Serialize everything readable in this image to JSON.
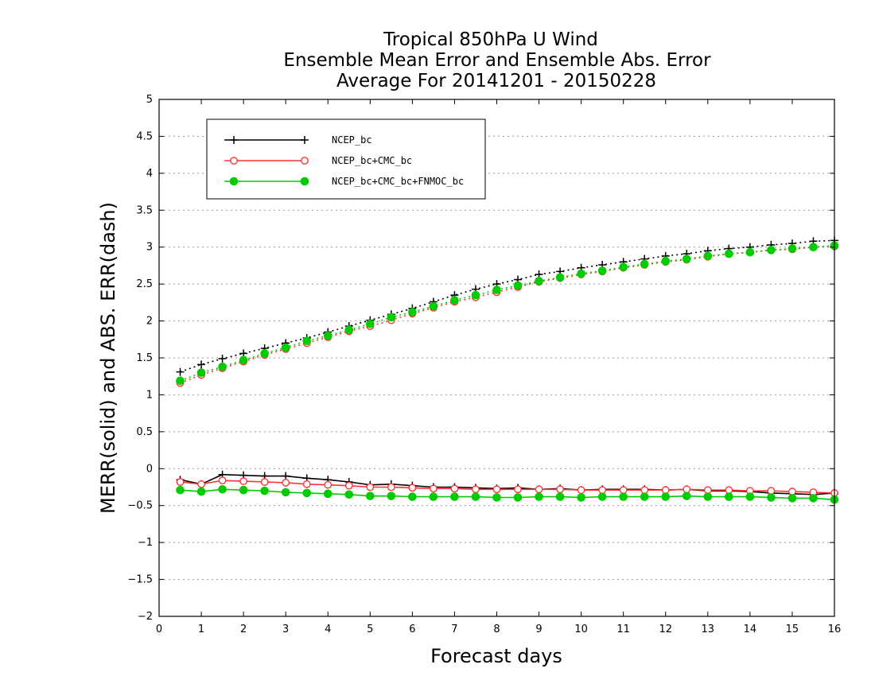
{
  "chart_data": {
    "type": "line",
    "title_lines": [
      "Tropical 850hPa U Wind",
      "Ensemble Mean Error and Ensemble Abs. Error",
      "Average For 20141201 - 20150228"
    ],
    "xlabel": "Forecast days",
    "ylabel": "MERR(solid) and ABS. ERR(dash)",
    "xlim": [
      0,
      16
    ],
    "ylim": [
      -2,
      5
    ],
    "xticks": [
      0,
      1,
      2,
      3,
      4,
      5,
      6,
      7,
      8,
      9,
      10,
      11,
      12,
      13,
      14,
      15,
      16
    ],
    "yticks": [
      -2,
      -1.5,
      -1,
      -0.5,
      0,
      0.5,
      1,
      1.5,
      2,
      2.5,
      3,
      3.5,
      4,
      4.5,
      5
    ],
    "ytick_labels": [
      "−2",
      "−1.5",
      "−1",
      "−0.5",
      "0",
      "0.5",
      "1",
      "1.5",
      "2",
      "2.5",
      "3",
      "3.5",
      "4",
      "4.5",
      "5"
    ],
    "grid": "horizontal dotted",
    "legend_position": "top-left",
    "x": [
      0.5,
      1,
      1.5,
      2,
      2.5,
      3,
      3.5,
      4,
      4.5,
      5,
      5.5,
      6,
      6.5,
      7,
      7.5,
      8,
      8.5,
      9,
      9.5,
      10,
      10.5,
      11,
      11.5,
      12,
      12.5,
      13,
      13.5,
      14,
      14.5,
      15,
      15.5,
      16
    ],
    "series": [
      {
        "name": "NCEP_bc",
        "color": "#000000",
        "marker": "plus",
        "merr": [
          -0.15,
          -0.21,
          -0.08,
          -0.09,
          -0.1,
          -0.1,
          -0.13,
          -0.15,
          -0.18,
          -0.22,
          -0.21,
          -0.23,
          -0.25,
          -0.25,
          -0.26,
          -0.27,
          -0.26,
          -0.28,
          -0.27,
          -0.29,
          -0.28,
          -0.28,
          -0.28,
          -0.29,
          -0.28,
          -0.3,
          -0.3,
          -0.31,
          -0.33,
          -0.34,
          -0.35,
          -0.33
        ],
        "abs_err": [
          1.31,
          1.41,
          1.49,
          1.56,
          1.63,
          1.7,
          1.77,
          1.85,
          1.93,
          2.01,
          2.09,
          2.17,
          2.26,
          2.35,
          2.43,
          2.5,
          2.56,
          2.63,
          2.67,
          2.72,
          2.76,
          2.8,
          2.84,
          2.88,
          2.91,
          2.95,
          2.98,
          3.0,
          3.03,
          3.05,
          3.08,
          3.09
        ]
      },
      {
        "name": "NCEP_bc+CMC_bc",
        "color": "#ff3333",
        "marker": "open-circle",
        "merr": [
          -0.18,
          -0.21,
          -0.16,
          -0.17,
          -0.18,
          -0.19,
          -0.21,
          -0.22,
          -0.23,
          -0.25,
          -0.25,
          -0.26,
          -0.27,
          -0.27,
          -0.28,
          -0.28,
          -0.28,
          -0.28,
          -0.28,
          -0.29,
          -0.29,
          -0.29,
          -0.29,
          -0.29,
          -0.28,
          -0.29,
          -0.29,
          -0.3,
          -0.3,
          -0.31,
          -0.32,
          -0.33
        ],
        "abs_err": [
          1.16,
          1.27,
          1.36,
          1.45,
          1.54,
          1.62,
          1.7,
          1.78,
          1.86,
          1.93,
          2.01,
          2.1,
          2.18,
          2.26,
          2.32,
          2.39,
          2.46,
          2.53,
          2.58,
          2.63,
          2.67,
          2.72,
          2.76,
          2.8,
          2.83,
          2.87,
          2.91,
          2.93,
          2.96,
          2.97,
          3.0,
          3.01
        ]
      },
      {
        "name": "NCEP_bc+CMC_bc+FNMOC_bc",
        "color": "#00cc00",
        "marker": "filled-circle",
        "merr": [
          -0.29,
          -0.31,
          -0.28,
          -0.29,
          -0.3,
          -0.32,
          -0.33,
          -0.34,
          -0.35,
          -0.37,
          -0.37,
          -0.38,
          -0.38,
          -0.38,
          -0.38,
          -0.39,
          -0.39,
          -0.38,
          -0.38,
          -0.39,
          -0.38,
          -0.38,
          -0.38,
          -0.38,
          -0.37,
          -0.38,
          -0.38,
          -0.38,
          -0.39,
          -0.4,
          -0.4,
          -0.42
        ],
        "abs_err": [
          1.19,
          1.3,
          1.38,
          1.47,
          1.56,
          1.64,
          1.73,
          1.8,
          1.88,
          1.96,
          2.05,
          2.12,
          2.2,
          2.28,
          2.35,
          2.42,
          2.48,
          2.54,
          2.59,
          2.64,
          2.68,
          2.73,
          2.77,
          2.81,
          2.84,
          2.88,
          2.91,
          2.93,
          2.96,
          2.98,
          3.0,
          3.02
        ]
      }
    ]
  }
}
